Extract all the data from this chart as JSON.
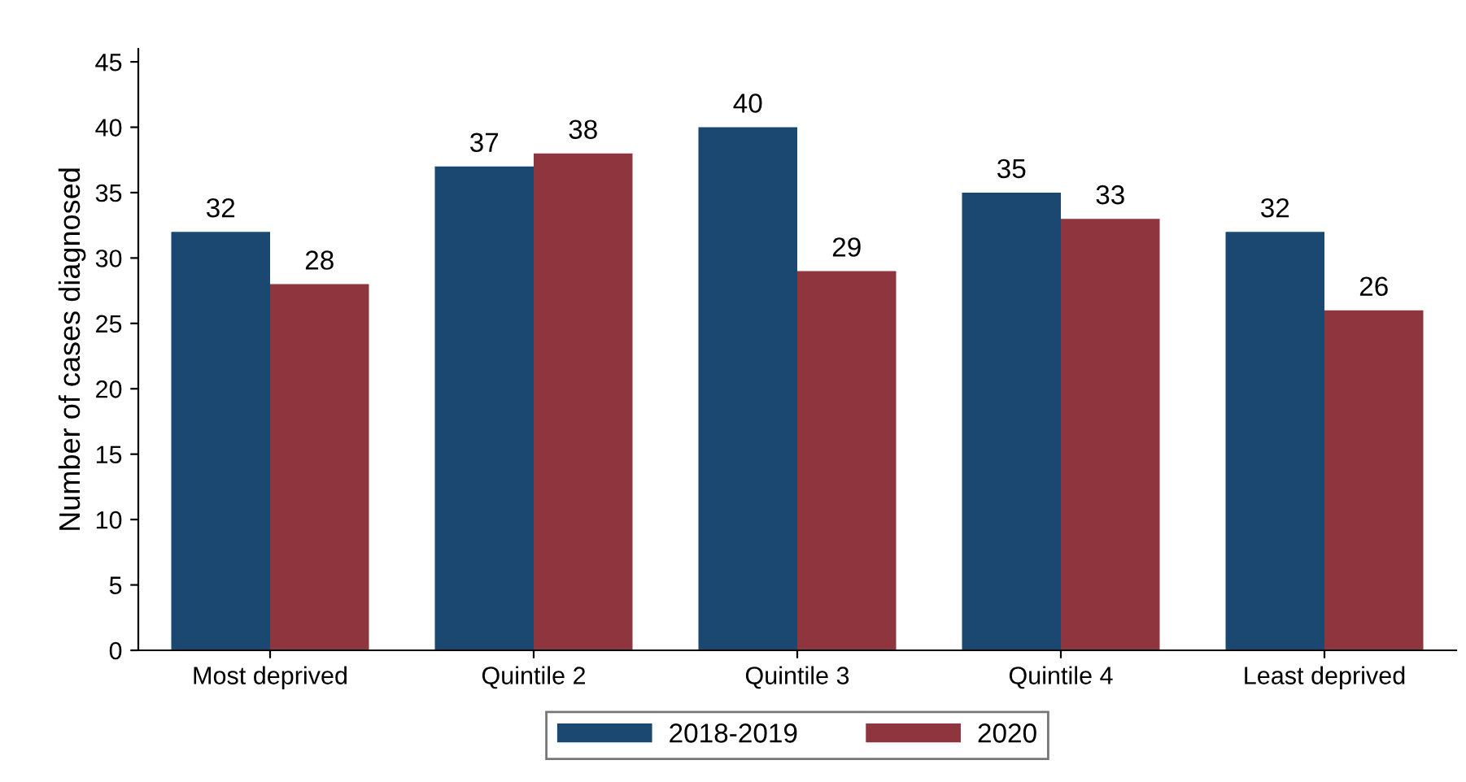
{
  "chart_data": {
    "type": "bar",
    "ylabel": "Number of cases diagnosed",
    "categories": [
      "Most deprived",
      "Quintile 2",
      "Quintile 3",
      "Quintile 4",
      "Least deprived"
    ],
    "series": [
      {
        "name": "2018-2019",
        "color": "#1b4870",
        "values": [
          32,
          37,
          40,
          35,
          32
        ]
      },
      {
        "name": "2020",
        "color": "#8e353d",
        "values": [
          28,
          38,
          29,
          33,
          26
        ]
      }
    ],
    "ylim": [
      0,
      46
    ],
    "yticks": [
      0,
      5,
      10,
      15,
      20,
      25,
      30,
      35,
      40,
      45
    ],
    "data_labels": true,
    "grid": false,
    "legend": "bottom"
  }
}
